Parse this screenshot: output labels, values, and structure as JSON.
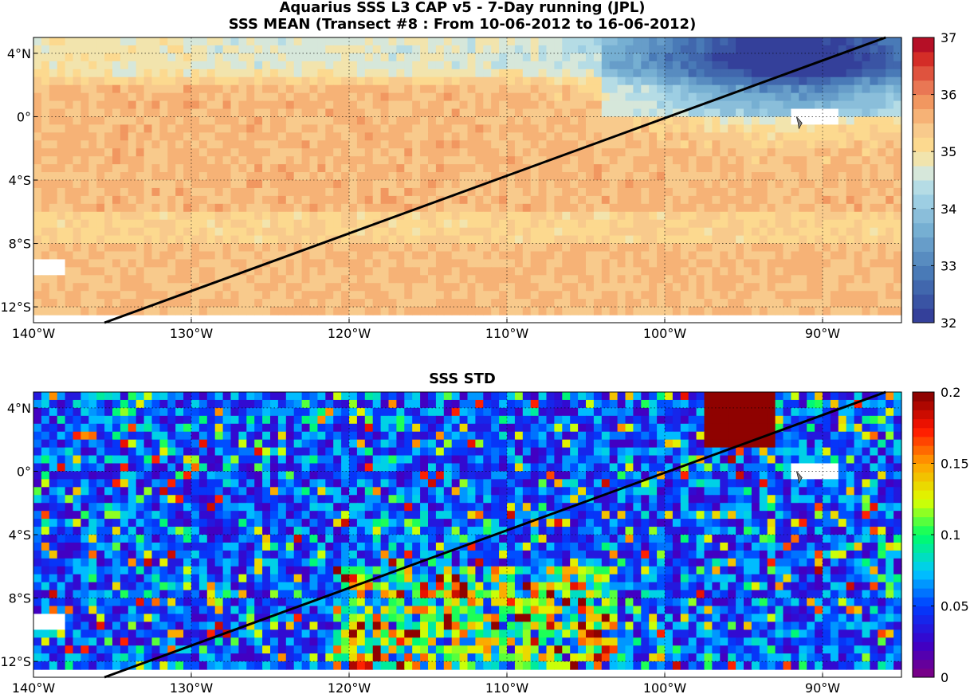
{
  "figure": {
    "title_line1": "Aquarius SSS L3 CAP v5 - 7-Day running (JPL)",
    "title_line2": "SSS MEAN (Transect #8 : From 10-06-2012 to 16-06-2012)",
    "title_bottom": "SSS STD"
  },
  "chart_data": [
    {
      "type": "heatmap",
      "title": "SSS MEAN (Transect #8 : From 10-06-2012 to 16-06-2012)",
      "xlim": [
        -140,
        -85
      ],
      "ylim": [
        -13,
        5
      ],
      "x_ticks": [
        -140,
        -130,
        -120,
        -110,
        -100,
        -90
      ],
      "x_tick_labels": [
        "140°W",
        "130°W",
        "120°W",
        "110°W",
        "100°W",
        "90°W"
      ],
      "y_ticks": [
        4,
        0,
        -4,
        -8,
        -12
      ],
      "y_tick_labels": [
        "4°N",
        "0°",
        "4°S",
        "8°S",
        "12°S"
      ],
      "grid": true,
      "colorbar": {
        "min": 32,
        "max": 37,
        "ticks": [
          32,
          33,
          34,
          35,
          36,
          37
        ],
        "tick_labels": [
          "32",
          "33",
          "34",
          "35",
          "36",
          "37"
        ],
        "colormap": "blue-to-red (diverging)"
      },
      "transect": {
        "start": [
          -135.5,
          -13
        ],
        "end": [
          -86.0,
          5
        ]
      },
      "field_summary": "Fresher water (~32.5-34.5) north of the equator east of 105°W; saltier water (~35.3-35.9) along 2°N-6°S and south of 8°S west of 100°W.",
      "colors": {
        "land_or_nodata": "#ffffff",
        "transect": "#000000"
      }
    },
    {
      "type": "heatmap",
      "title": "SSS STD",
      "xlim": [
        -140,
        -85
      ],
      "ylim": [
        -13,
        5
      ],
      "x_ticks": [
        -140,
        -130,
        -120,
        -110,
        -100,
        -90
      ],
      "x_tick_labels": [
        "140°W",
        "130°W",
        "120°W",
        "110°W",
        "100°W",
        "90°W"
      ],
      "y_ticks": [
        4,
        0,
        -4,
        -8,
        -12
      ],
      "y_tick_labels": [
        "4°N",
        "0°",
        "4°S",
        "8°S",
        "12°S"
      ],
      "grid": true,
      "colorbar": {
        "min": 0,
        "max": 0.2,
        "ticks": [
          0,
          0.05,
          0.1,
          0.15,
          0.2
        ],
        "tick_labels": [
          "0",
          "0.05",
          "0.1",
          "0.15",
          "0.2"
        ],
        "colormap": "jet"
      },
      "transect": {
        "start": [
          -135.5,
          -13
        ],
        "end": [
          -86.0,
          5
        ]
      },
      "field_summary": "Mostly low variability (0-0.06); high values (>0.15) near 92°W-96°W at 2°N-4°N and scattered along 110°W-120°W south of 6°S.",
      "colors": {
        "transect": "#000000"
      }
    }
  ]
}
